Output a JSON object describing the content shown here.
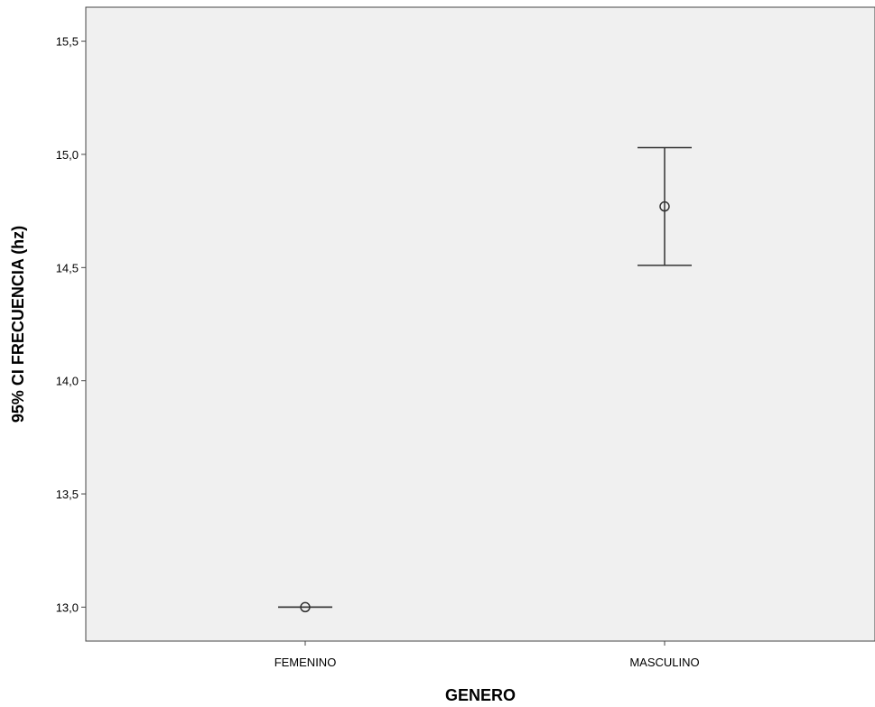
{
  "chart_data": {
    "type": "scatter",
    "xlabel": "GENERO",
    "ylabel": "95% CI FRECUENCIA (hz)",
    "categories": [
      "FEMENINO",
      "MASCULINO"
    ],
    "ylim": [
      12.85,
      15.65
    ],
    "yticks": [
      "13,0",
      "13,5",
      "14,0",
      "14,5",
      "15,0",
      "15,5"
    ],
    "ytick_values": [
      13.0,
      13.5,
      14.0,
      14.5,
      15.0,
      15.5
    ],
    "series": [
      {
        "points": [
          {
            "category": "FEMENINO",
            "mean": 13.0,
            "lower": 13.0,
            "upper": 13.0
          },
          {
            "category": "MASCULINO",
            "mean": 14.77,
            "lower": 14.51,
            "upper": 15.03
          }
        ]
      }
    ],
    "grid": false,
    "colors": {
      "plot_background": "#f0f0f0",
      "marks": "#333333",
      "axis": "#444444"
    }
  }
}
